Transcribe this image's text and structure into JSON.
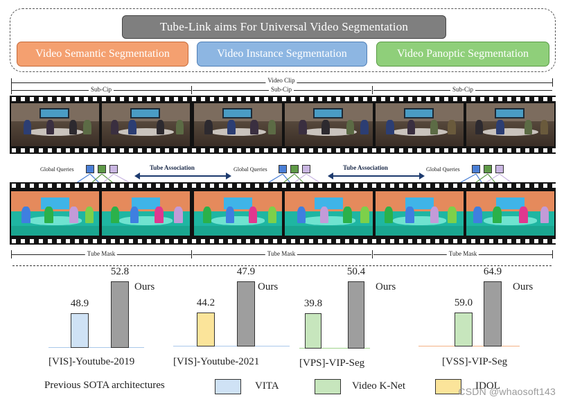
{
  "banner": {
    "title": "Tube-Link aims For Universal Video Segmentation",
    "tasks": [
      {
        "label": "Video Semantic Segmentation",
        "color": "#f4a070"
      },
      {
        "label": "Video Instance Segmentation",
        "color": "#8db6e2"
      },
      {
        "label": "Video Panoptic Segmentation",
        "color": "#8fcf7a"
      }
    ]
  },
  "pipeline": {
    "video_clip_label": "Video Clip",
    "sub_clip_labels": [
      "Sub-Cip",
      "Sub-Cip",
      "Sub-Cip"
    ],
    "global_queries_labels": [
      "Global Queries",
      "Global Queries",
      "Global Queries"
    ],
    "tube_association_labels": [
      "Tube Association",
      "Tube Association"
    ],
    "tube_mask_labels": [
      "Tube Mask",
      "Tube Mask",
      "Tube Mask"
    ],
    "query_colors": [
      "#4a7fd6",
      "#5f9a47",
      "#c9b6e2"
    ]
  },
  "chart_data": [
    {
      "type": "bar",
      "title": "[VIS]-Youtube-2019",
      "categories": [
        "VITA",
        "Ours"
      ],
      "values": [
        48.9,
        52.8
      ],
      "value_labels": [
        "48.9",
        "52.8"
      ],
      "baseline_color": "#a9c8ea",
      "prev_color": "#cfe2f5",
      "ours_label": "Ours"
    },
    {
      "type": "bar",
      "title": "[VIS]-Youtube-2021",
      "categories": [
        "IDOL",
        "Ours"
      ],
      "values": [
        44.2,
        47.9
      ],
      "value_labels": [
        "44.2",
        "47.9"
      ],
      "baseline_color": "#a9c8ea",
      "prev_color": "#fbe49a",
      "ours_label": "Ours"
    },
    {
      "type": "bar",
      "title": "[VPS]-VIP-Seg",
      "categories": [
        "Video K-Net",
        "Ours"
      ],
      "values": [
        39.8,
        50.4
      ],
      "value_labels": [
        "39.8",
        "50.4"
      ],
      "baseline_color": "#9fd38c",
      "prev_color": "#c7e6bd",
      "ours_label": "Ours"
    },
    {
      "type": "bar",
      "title": "[VSS]-VIP-Seg",
      "categories": [
        "Video K-Net",
        "Ours"
      ],
      "values": [
        59.0,
        64.9
      ],
      "value_labels": [
        "59.0",
        "64.9"
      ],
      "baseline_color": "#f3b184",
      "prev_color": "#c7e6bd",
      "ours_label": "Ours"
    }
  ],
  "ours_color": "#9e9e9e",
  "legend": {
    "title": "Previous SOTA architectures",
    "items": [
      {
        "label": "VITA",
        "color": "#cfe2f5"
      },
      {
        "label": "Video K-Net",
        "color": "#c7e6bd"
      },
      {
        "label": "IDOL",
        "color": "#fbe49a"
      }
    ]
  },
  "watermark": "CSDN @whaosoft143"
}
